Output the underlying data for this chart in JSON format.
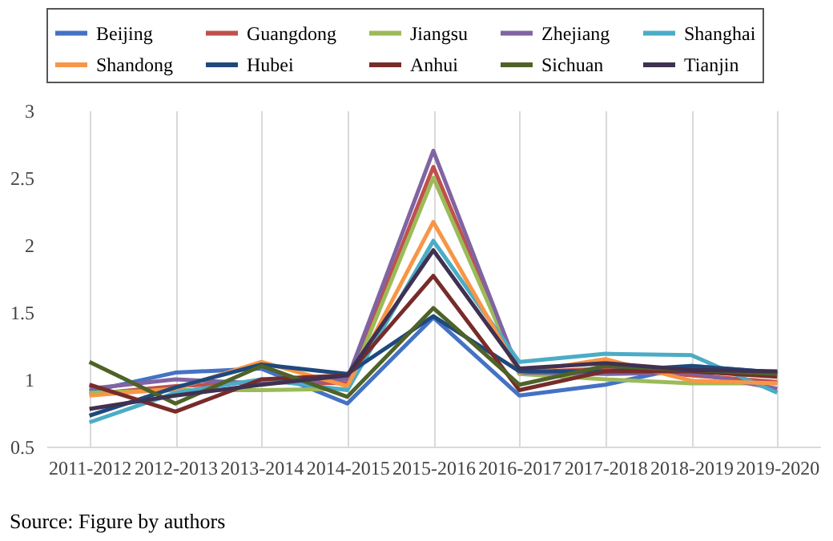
{
  "chart_data": {
    "type": "line",
    "categories": [
      "2011-2012",
      "2012-2013",
      "2013-2014",
      "2014-2015",
      "2015-2016",
      "2016-2017",
      "2017-2018",
      "2018-2019",
      "2019-2020"
    ],
    "series": [
      {
        "name": "Beijing",
        "color": "#4472c4",
        "values": [
          0.91,
          1.05,
          1.08,
          0.82,
          1.46,
          0.88,
          0.96,
          1.1,
          1.05
        ]
      },
      {
        "name": "Guangdong",
        "color": "#c0504d",
        "values": [
          0.89,
          0.95,
          0.98,
          0.97,
          2.58,
          1.05,
          1.08,
          1.03,
          0.98
        ]
      },
      {
        "name": "Jiangsu",
        "color": "#9bbb59",
        "values": [
          0.9,
          0.92,
          0.92,
          0.93,
          2.5,
          1.04,
          1.0,
          0.97,
          0.97
        ]
      },
      {
        "name": "Zhejiang",
        "color": "#8064a2",
        "values": [
          0.93,
          1.0,
          0.97,
          1.0,
          2.7,
          1.05,
          1.04,
          1.05,
          0.93
        ]
      },
      {
        "name": "Shanghai",
        "color": "#4bacc6",
        "values": [
          0.68,
          0.9,
          1.0,
          0.92,
          2.03,
          1.13,
          1.19,
          1.18,
          0.9
        ]
      },
      {
        "name": "Shandong",
        "color": "#f79646",
        "values": [
          0.88,
          0.93,
          1.13,
          0.95,
          2.17,
          1.05,
          1.15,
          0.99,
          0.97
        ]
      },
      {
        "name": "Hubei",
        "color": "#1f497d",
        "values": [
          0.73,
          0.94,
          1.11,
          1.04,
          1.47,
          1.06,
          1.06,
          1.1,
          1.05
        ]
      },
      {
        "name": "Anhui",
        "color": "#772c2a",
        "values": [
          0.96,
          0.76,
          1.0,
          1.03,
          1.77,
          0.92,
          1.06,
          1.06,
          1.02
        ]
      },
      {
        "name": "Sichuan",
        "color": "#4f6228",
        "values": [
          1.13,
          0.82,
          1.1,
          0.87,
          1.53,
          0.96,
          1.1,
          1.07,
          1.04
        ]
      },
      {
        "name": "Tianjin",
        "color": "#403152",
        "values": [
          0.78,
          0.88,
          0.96,
          1.03,
          1.96,
          1.08,
          1.12,
          1.07,
          1.06
        ]
      }
    ],
    "ylim": [
      0.5,
      3
    ],
    "yticks": [
      0.5,
      1,
      1.5,
      2,
      2.5,
      3
    ],
    "grid": "x",
    "legend": "top",
    "marker": "none",
    "line_style": "solid",
    "annotations": [
      "Source: Figure by authors"
    ]
  }
}
